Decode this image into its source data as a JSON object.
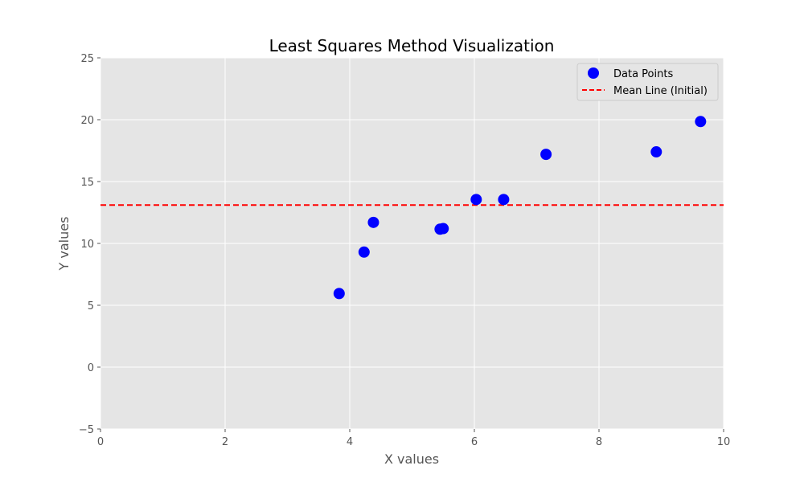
{
  "chart_data": {
    "type": "scatter",
    "title": "Least Squares Method Visualization",
    "xlabel": "X values",
    "ylabel": "Y values",
    "xlim": [
      0,
      10
    ],
    "ylim": [
      -5,
      25
    ],
    "xticks": [
      0,
      2,
      4,
      6,
      8,
      10
    ],
    "yticks": [
      -5,
      0,
      5,
      10,
      15,
      20,
      25
    ],
    "xtick_labels": [
      "0",
      "2",
      "4",
      "6",
      "8",
      "10"
    ],
    "ytick_labels": [
      "−5",
      "0",
      "5",
      "10",
      "15",
      "20",
      "25"
    ],
    "grid": true,
    "legend_placement": "top-right",
    "series": [
      {
        "name": "Data Points",
        "kind": "scatter",
        "color": "#0000ff",
        "points": [
          {
            "x": 3.83,
            "y": 5.95
          },
          {
            "x": 4.23,
            "y": 9.3
          },
          {
            "x": 4.38,
            "y": 11.7
          },
          {
            "x": 5.45,
            "y": 11.15
          },
          {
            "x": 5.5,
            "y": 11.2
          },
          {
            "x": 6.03,
            "y": 13.55
          },
          {
            "x": 6.47,
            "y": 13.55
          },
          {
            "x": 7.15,
            "y": 17.2
          },
          {
            "x": 8.92,
            "y": 17.4
          },
          {
            "x": 9.63,
            "y": 19.85
          }
        ]
      },
      {
        "name": "Mean Line (Initial)",
        "kind": "hline",
        "color": "#ff0000",
        "style": "dashed",
        "y": 13.1
      }
    ]
  },
  "colors": {
    "plot_background": "#e5e5e5",
    "grid": "#ffffff",
    "axis_text": "#555555"
  }
}
